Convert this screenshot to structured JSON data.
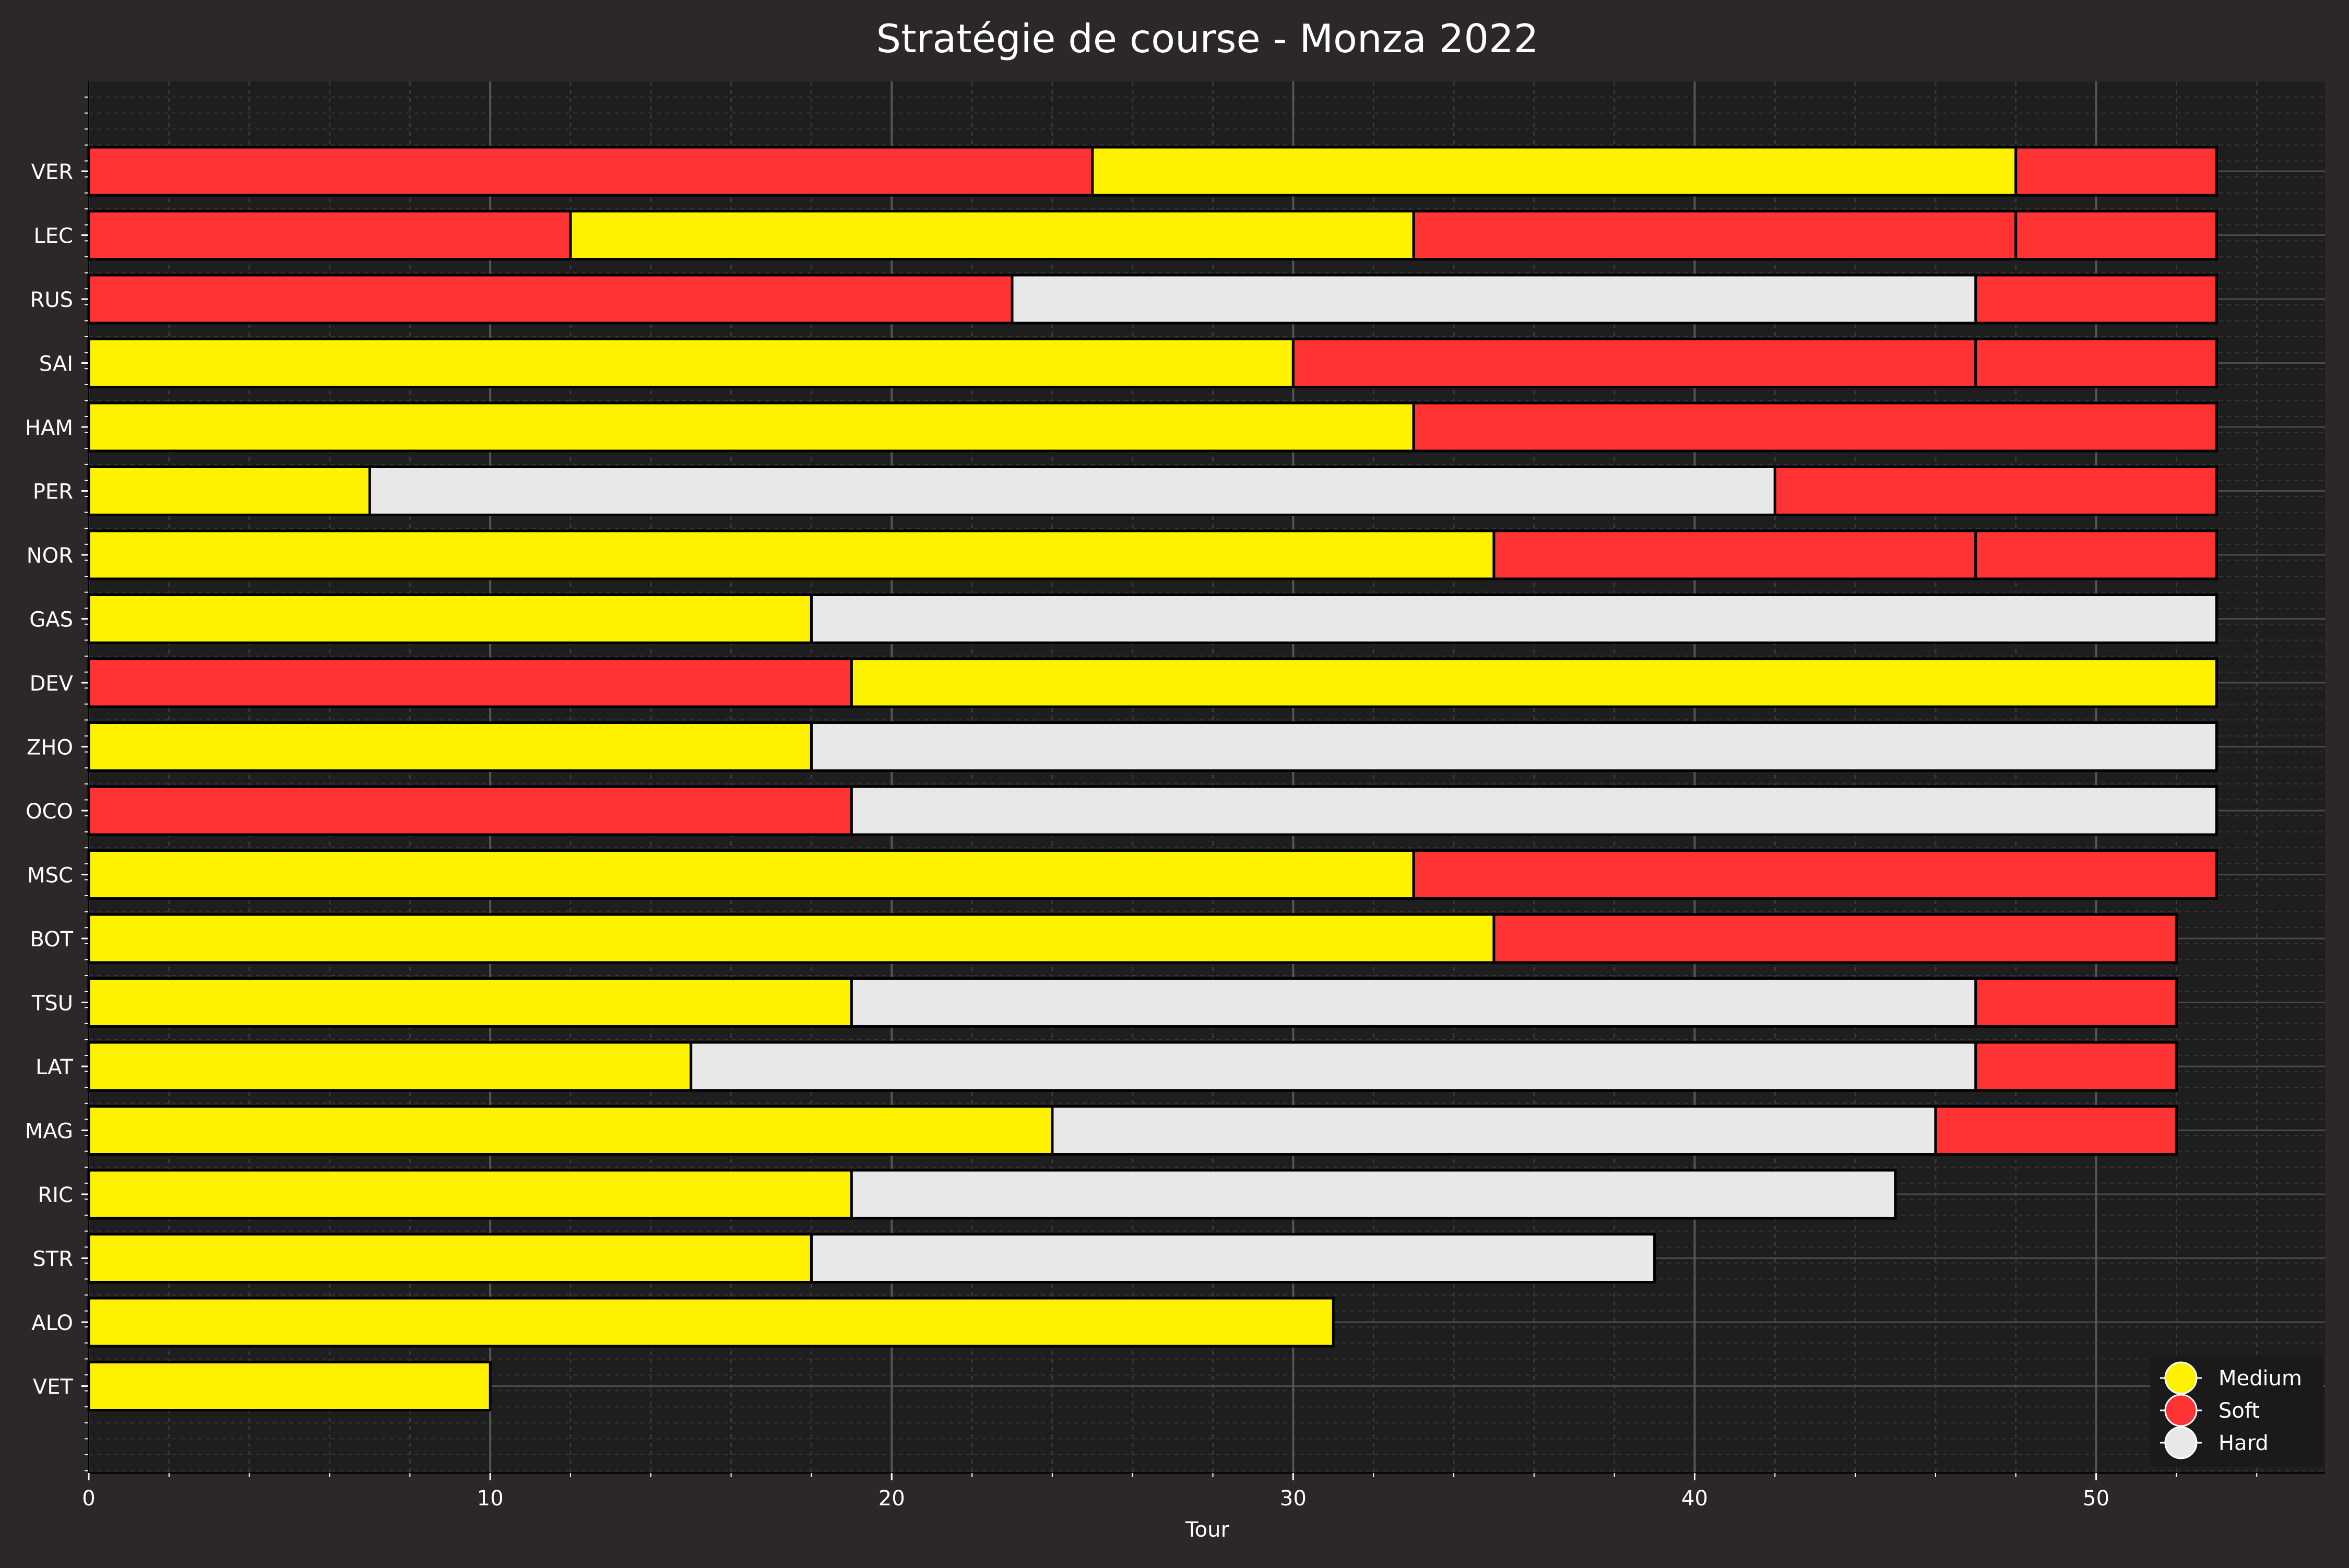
{
  "chart_data": {
    "type": "bar",
    "orientation": "horizontal-stacked",
    "title": "Stratégie de course - Monza 2022",
    "xlabel": "Tour",
    "ylabel": "",
    "xlim": [
      0,
      55.7
    ],
    "xticks": [
      0,
      10,
      20,
      30,
      40,
      50
    ],
    "grid": true,
    "legend_position": "bottom-right",
    "colors": {
      "background": "#2b2827",
      "plot_background": "#1e1e1e",
      "grid": "#555555",
      "text": "#ffffff",
      "bar_edge": "#000000"
    },
    "compounds": [
      {
        "name": "Medium",
        "color": "#fff200"
      },
      {
        "name": "Soft",
        "color": "#ff3333"
      },
      {
        "name": "Hard",
        "color": "#e8e8e8"
      }
    ],
    "drivers": [
      {
        "driver": "VER",
        "stints": [
          {
            "compound": "Soft",
            "start": 0,
            "end": 25
          },
          {
            "compound": "Medium",
            "start": 25,
            "end": 48
          },
          {
            "compound": "Soft",
            "start": 48,
            "end": 53
          }
        ]
      },
      {
        "driver": "LEC",
        "stints": [
          {
            "compound": "Soft",
            "start": 0,
            "end": 12
          },
          {
            "compound": "Medium",
            "start": 12,
            "end": 33
          },
          {
            "compound": "Soft",
            "start": 33,
            "end": 48
          },
          {
            "compound": "Soft",
            "start": 48,
            "end": 53
          }
        ]
      },
      {
        "driver": "RUS",
        "stints": [
          {
            "compound": "Soft",
            "start": 0,
            "end": 23
          },
          {
            "compound": "Hard",
            "start": 23,
            "end": 47
          },
          {
            "compound": "Soft",
            "start": 47,
            "end": 53
          }
        ]
      },
      {
        "driver": "SAI",
        "stints": [
          {
            "compound": "Medium",
            "start": 0,
            "end": 30
          },
          {
            "compound": "Soft",
            "start": 30,
            "end": 47
          },
          {
            "compound": "Soft",
            "start": 47,
            "end": 53
          }
        ]
      },
      {
        "driver": "HAM",
        "stints": [
          {
            "compound": "Medium",
            "start": 0,
            "end": 33
          },
          {
            "compound": "Soft",
            "start": 33,
            "end": 53
          }
        ]
      },
      {
        "driver": "PER",
        "stints": [
          {
            "compound": "Medium",
            "start": 0,
            "end": 7
          },
          {
            "compound": "Hard",
            "start": 7,
            "end": 42
          },
          {
            "compound": "Soft",
            "start": 42,
            "end": 53
          }
        ]
      },
      {
        "driver": "NOR",
        "stints": [
          {
            "compound": "Medium",
            "start": 0,
            "end": 35
          },
          {
            "compound": "Soft",
            "start": 35,
            "end": 47
          },
          {
            "compound": "Soft",
            "start": 47,
            "end": 53
          }
        ]
      },
      {
        "driver": "GAS",
        "stints": [
          {
            "compound": "Medium",
            "start": 0,
            "end": 18
          },
          {
            "compound": "Hard",
            "start": 18,
            "end": 53
          }
        ]
      },
      {
        "driver": "DEV",
        "stints": [
          {
            "compound": "Soft",
            "start": 0,
            "end": 19
          },
          {
            "compound": "Medium",
            "start": 19,
            "end": 53
          }
        ]
      },
      {
        "driver": "ZHO",
        "stints": [
          {
            "compound": "Medium",
            "start": 0,
            "end": 18
          },
          {
            "compound": "Hard",
            "start": 18,
            "end": 53
          }
        ]
      },
      {
        "driver": "OCO",
        "stints": [
          {
            "compound": "Soft",
            "start": 0,
            "end": 19
          },
          {
            "compound": "Hard",
            "start": 19,
            "end": 53
          }
        ]
      },
      {
        "driver": "MSC",
        "stints": [
          {
            "compound": "Medium",
            "start": 0,
            "end": 33
          },
          {
            "compound": "Soft",
            "start": 33,
            "end": 53
          }
        ]
      },
      {
        "driver": "BOT",
        "stints": [
          {
            "compound": "Medium",
            "start": 0,
            "end": 35
          },
          {
            "compound": "Soft",
            "start": 35,
            "end": 52
          }
        ]
      },
      {
        "driver": "TSU",
        "stints": [
          {
            "compound": "Medium",
            "start": 0,
            "end": 19
          },
          {
            "compound": "Hard",
            "start": 19,
            "end": 47
          },
          {
            "compound": "Soft",
            "start": 47,
            "end": 52
          }
        ]
      },
      {
        "driver": "LAT",
        "stints": [
          {
            "compound": "Medium",
            "start": 0,
            "end": 15
          },
          {
            "compound": "Hard",
            "start": 15,
            "end": 47
          },
          {
            "compound": "Soft",
            "start": 47,
            "end": 52
          }
        ]
      },
      {
        "driver": "MAG",
        "stints": [
          {
            "compound": "Medium",
            "start": 0,
            "end": 24
          },
          {
            "compound": "Hard",
            "start": 24,
            "end": 46
          },
          {
            "compound": "Soft",
            "start": 46,
            "end": 52
          }
        ]
      },
      {
        "driver": "RIC",
        "stints": [
          {
            "compound": "Medium",
            "start": 0,
            "end": 19
          },
          {
            "compound": "Hard",
            "start": 19,
            "end": 45
          }
        ]
      },
      {
        "driver": "STR",
        "stints": [
          {
            "compound": "Medium",
            "start": 0,
            "end": 18
          },
          {
            "compound": "Hard",
            "start": 18,
            "end": 39
          }
        ]
      },
      {
        "driver": "ALO",
        "stints": [
          {
            "compound": "Medium",
            "start": 0,
            "end": 31
          }
        ]
      },
      {
        "driver": "VET",
        "stints": [
          {
            "compound": "Medium",
            "start": 0,
            "end": 10
          }
        ]
      }
    ]
  }
}
